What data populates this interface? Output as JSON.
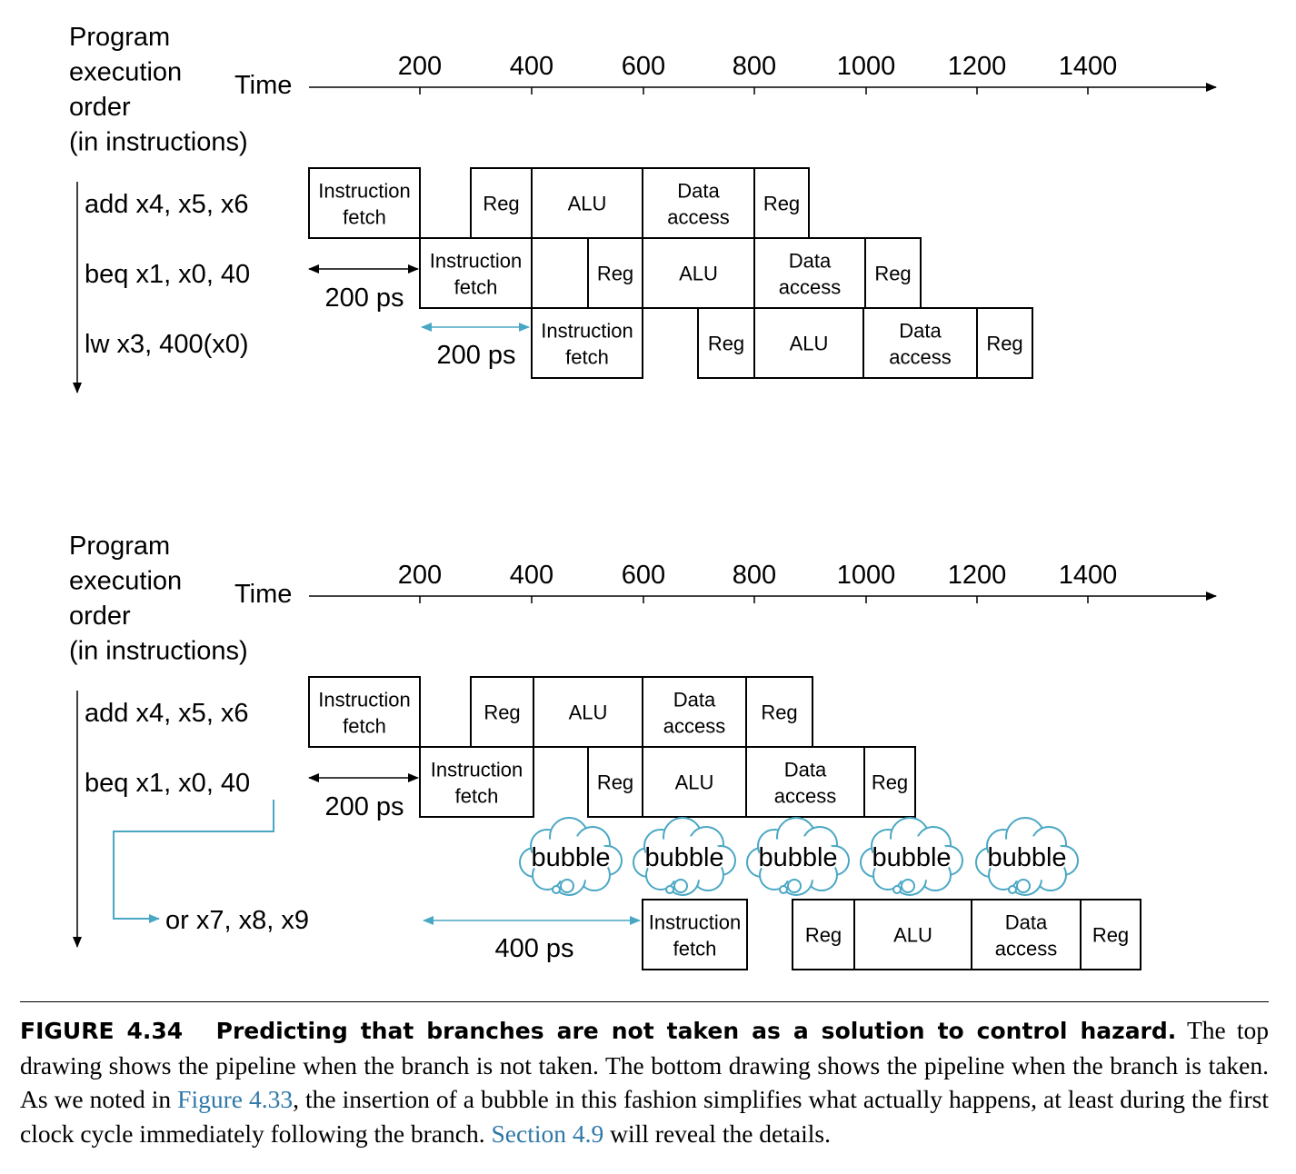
{
  "colors": {
    "accent": "#4aa7c4",
    "link": "#2f78a8",
    "ink": "#000000"
  },
  "diagrams": [
    {
      "y_label": [
        "Program",
        "execution",
        "order",
        "(in instructions)"
      ],
      "time_label": "Time",
      "ticks": [
        "200",
        "400",
        "600",
        "800",
        "1000",
        "1200",
        "1400"
      ],
      "instructions": [
        {
          "text": "add x4, x5, x6",
          "accent": false,
          "stages": [
            "Instruction fetch",
            "Reg",
            "ALU",
            "Data access",
            "Reg"
          ]
        },
        {
          "text": "beq x1, x0, 40",
          "accent": true,
          "stages": [
            "Instruction fetch",
            "Reg",
            "ALU",
            "Data access",
            "Reg"
          ]
        },
        {
          "text": "lw x3, 400(x0)",
          "accent": false,
          "stages": [
            "Instruction fetch",
            "Reg",
            "ALU",
            "Data access",
            "Reg"
          ]
        }
      ],
      "delays": [
        {
          "text": "200 ps",
          "accent": false
        },
        {
          "text": "200 ps",
          "accent": true
        }
      ]
    },
    {
      "y_label": [
        "Program",
        "execution",
        "order",
        "(in instructions)"
      ],
      "time_label": "Time",
      "ticks": [
        "200",
        "400",
        "600",
        "800",
        "1000",
        "1200",
        "1400"
      ],
      "instructions": [
        {
          "text": "add x4, x5, x6",
          "accent": false,
          "stages": [
            "Instruction fetch",
            "Reg",
            "ALU",
            "Data access",
            "Reg"
          ]
        },
        {
          "text": "beq x1, x0, 40",
          "accent": true,
          "stages": [
            "Instruction fetch",
            "Reg",
            "ALU",
            "Data access",
            "Reg"
          ]
        },
        {
          "text": "or x7, x8, x9",
          "accent": true,
          "stages": [
            "Instruction fetch",
            "Reg",
            "ALU",
            "Data access",
            "Reg"
          ]
        }
      ],
      "bubbles": [
        "bubble",
        "bubble",
        "bubble",
        "bubble",
        "bubble"
      ],
      "delays": [
        {
          "text": "200 ps",
          "accent": false
        },
        {
          "text": "400 ps",
          "accent": true
        }
      ]
    }
  ],
  "caption": {
    "figure_number": "FIGURE 4.34",
    "title": "Predicting that branches are not taken as a solution to control hazard.",
    "text_1": "The top drawing shows the pipeline when the branch is not taken. The bottom drawing shows the pipeline when the branch is taken. As we noted in",
    "link_1": "Figure 4.33",
    "text_2": ", the insertion of a bubble in this fashion simplifies what actually happens, at least during the first clock cycle immediately following the branch.",
    "link_2": "Section 4.9",
    "text_3": "will reveal the details."
  }
}
